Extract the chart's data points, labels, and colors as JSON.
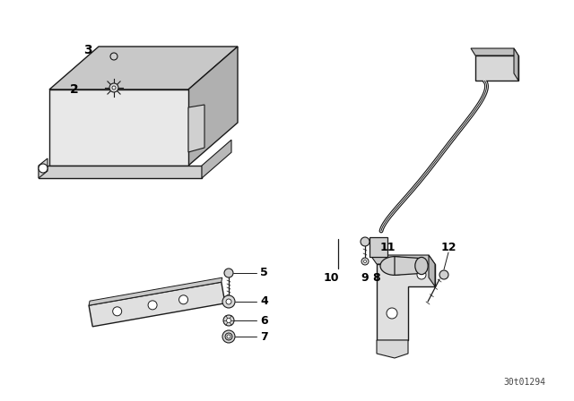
{
  "background_color": "#ffffff",
  "line_color": "#1a1a1a",
  "text_color": "#000000",
  "diagram_id": "30t01294",
  "figsize": [
    6.4,
    4.48
  ],
  "dpi": 100
}
